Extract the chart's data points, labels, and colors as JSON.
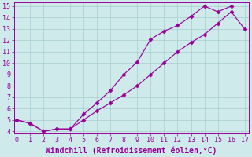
{
  "xlabel": "Windchill (Refroidissement éolien,°C)",
  "line1_x": [
    0,
    1,
    2,
    3,
    4,
    5,
    6,
    7,
    8,
    9,
    10,
    11,
    12,
    13,
    14,
    15,
    16
  ],
  "line1_y": [
    5.0,
    4.7,
    4.0,
    4.2,
    4.2,
    5.5,
    6.5,
    7.6,
    9.0,
    10.1,
    12.1,
    12.8,
    13.3,
    14.1,
    15.0,
    14.5,
    15.0
  ],
  "line2_x": [
    0,
    1,
    2,
    3,
    4,
    5,
    6,
    7,
    8,
    9,
    10,
    11,
    12,
    13,
    14,
    15,
    16,
    17
  ],
  "line2_y": [
    5.0,
    4.7,
    4.0,
    4.2,
    4.2,
    5.0,
    5.8,
    6.5,
    7.2,
    8.0,
    9.0,
    10.0,
    11.0,
    11.8,
    12.5,
    13.5,
    14.5,
    13.0
  ],
  "line_color": "#990099",
  "marker": "D",
  "markersize": 2.5,
  "linewidth": 0.85,
  "bg_color": "#ceeaea",
  "grid_color": "#aacccc",
  "xlim_min": -0.2,
  "xlim_max": 17.3,
  "ylim_min": 3.8,
  "ylim_max": 15.3,
  "xticks": [
    0,
    1,
    2,
    3,
    4,
    5,
    6,
    7,
    8,
    9,
    10,
    11,
    12,
    13,
    14,
    15,
    16,
    17
  ],
  "yticks": [
    4,
    5,
    6,
    7,
    8,
    9,
    10,
    11,
    12,
    13,
    14,
    15
  ],
  "tick_fontsize": 6.0,
  "xlabel_fontsize": 7.0
}
